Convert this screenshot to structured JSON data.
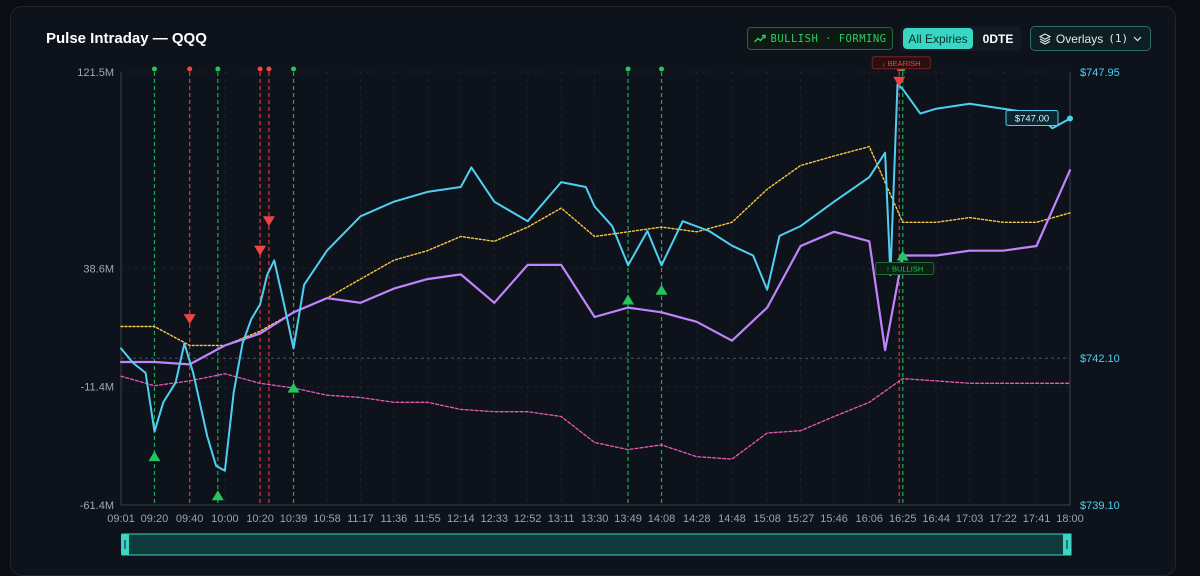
{
  "header": {
    "title": "Pulse Intraday — QQQ",
    "signal_badge": "BULLISH · FORMING",
    "expiry_all": "All Expiries",
    "expiry_0dte": "0DTE",
    "overlays_label": "Overlays",
    "overlays_count": "(1)"
  },
  "colors": {
    "price": "#4fd0f2",
    "net_flow": "#c084fc",
    "cumulative": "#f7c948",
    "put_flow": "#e75ab4",
    "bull": "#22c55e",
    "bear": "#ef4444"
  },
  "icons": {
    "signal": "trend-up-icon",
    "overlays": "layers-icon",
    "dropdown": "chevron-down-icon"
  },
  "chart_data": {
    "type": "line",
    "time_ticks": [
      "09:01",
      "09:20",
      "09:40",
      "10:00",
      "10:20",
      "10:39",
      "10:58",
      "11:17",
      "11:36",
      "11:55",
      "12:14",
      "12:33",
      "12:52",
      "13:11",
      "13:30",
      "13:49",
      "14:08",
      "14:28",
      "14:48",
      "15:08",
      "15:27",
      "15:46",
      "16:06",
      "16:25",
      "16:44",
      "17:03",
      "17:22",
      "17:41",
      "18:00"
    ],
    "left_axis": {
      "ticks": [
        "121.5M",
        "38.6M",
        "-11.4M",
        "-61.4M"
      ],
      "values": [
        121.5,
        38.6,
        -11.4,
        -61.4
      ],
      "range": [
        -61.4,
        121.5
      ]
    },
    "right_axis": {
      "ticks": [
        "$747.95",
        "$742.10",
        "$739.10"
      ],
      "values": [
        747.95,
        742.1,
        739.1
      ],
      "range": [
        739.1,
        747.95
      ]
    },
    "reference_line": {
      "axis": "right",
      "value": 742.1
    },
    "price_label": "$747.00",
    "series": [
      {
        "key": "price",
        "axis": "right",
        "style": "solid",
        "points": [
          [
            "09:01",
            742.3
          ],
          [
            "09:08",
            742.0
          ],
          [
            "09:15",
            741.8
          ],
          [
            "09:20",
            740.6
          ],
          [
            "09:25",
            741.2
          ],
          [
            "09:32",
            741.6
          ],
          [
            "09:37",
            742.4
          ],
          [
            "09:42",
            741.8
          ],
          [
            "09:50",
            740.5
          ],
          [
            "09:55",
            739.9
          ],
          [
            "10:00",
            739.8
          ],
          [
            "10:05",
            741.4
          ],
          [
            "10:10",
            742.4
          ],
          [
            "10:15",
            742.9
          ],
          [
            "10:20",
            743.2
          ],
          [
            "10:24",
            743.8
          ],
          [
            "10:28",
            744.1
          ],
          [
            "10:33",
            743.3
          ],
          [
            "10:39",
            742.3
          ],
          [
            "10:45",
            743.6
          ],
          [
            "10:58",
            744.3
          ],
          [
            "11:17",
            745.0
          ],
          [
            "11:36",
            745.3
          ],
          [
            "11:55",
            745.5
          ],
          [
            "12:14",
            745.6
          ],
          [
            "12:20",
            746.0
          ],
          [
            "12:33",
            745.3
          ],
          [
            "12:52",
            744.9
          ],
          [
            "13:11",
            745.7
          ],
          [
            "13:25",
            745.6
          ],
          [
            "13:30",
            745.2
          ],
          [
            "13:40",
            744.8
          ],
          [
            "13:49",
            744.0
          ],
          [
            "14:00",
            744.7
          ],
          [
            "14:08",
            744.0
          ],
          [
            "14:20",
            744.9
          ],
          [
            "14:35",
            744.7
          ],
          [
            "14:48",
            744.4
          ],
          [
            "15:00",
            744.2
          ],
          [
            "15:08",
            743.5
          ],
          [
            "15:15",
            744.6
          ],
          [
            "15:27",
            744.8
          ],
          [
            "15:46",
            745.3
          ],
          [
            "16:06",
            745.8
          ],
          [
            "16:15",
            746.3
          ],
          [
            "16:18",
            743.8
          ],
          [
            "16:22",
            747.7
          ],
          [
            "16:25",
            747.6
          ],
          [
            "16:35",
            747.1
          ],
          [
            "16:44",
            747.2
          ],
          [
            "17:03",
            747.3
          ],
          [
            "17:22",
            747.2
          ],
          [
            "17:41",
            747.1
          ],
          [
            "17:50",
            746.8
          ],
          [
            "18:00",
            747.0
          ]
        ]
      },
      {
        "key": "cumulative",
        "axis": "left",
        "style": "dotted",
        "points": [
          [
            "09:01",
            14
          ],
          [
            "09:20",
            14
          ],
          [
            "09:40",
            6
          ],
          [
            "10:00",
            6
          ],
          [
            "10:20",
            12
          ],
          [
            "10:39",
            20
          ],
          [
            "10:58",
            26
          ],
          [
            "11:17",
            34
          ],
          [
            "11:36",
            42
          ],
          [
            "11:55",
            46
          ],
          [
            "12:14",
            52
          ],
          [
            "12:33",
            50
          ],
          [
            "12:52",
            56
          ],
          [
            "13:11",
            64
          ],
          [
            "13:30",
            52
          ],
          [
            "13:49",
            54
          ],
          [
            "14:08",
            56
          ],
          [
            "14:28",
            54
          ],
          [
            "14:48",
            58
          ],
          [
            "15:08",
            72
          ],
          [
            "15:27",
            82
          ],
          [
            "15:46",
            86
          ],
          [
            "16:06",
            90
          ],
          [
            "16:25",
            58
          ],
          [
            "16:44",
            58
          ],
          [
            "17:03",
            60
          ],
          [
            "17:22",
            58
          ],
          [
            "17:41",
            58
          ],
          [
            "18:00",
            62
          ]
        ]
      },
      {
        "key": "net_flow",
        "axis": "left",
        "style": "solid",
        "points": [
          [
            "09:01",
            -1
          ],
          [
            "09:20",
            -1
          ],
          [
            "09:40",
            -2
          ],
          [
            "10:00",
            6
          ],
          [
            "10:20",
            11
          ],
          [
            "10:39",
            20
          ],
          [
            "10:58",
            26
          ],
          [
            "11:17",
            24
          ],
          [
            "11:36",
            30
          ],
          [
            "11:55",
            34
          ],
          [
            "12:14",
            36
          ],
          [
            "12:33",
            24
          ],
          [
            "12:52",
            40
          ],
          [
            "13:11",
            40
          ],
          [
            "13:30",
            18
          ],
          [
            "13:49",
            22
          ],
          [
            "14:08",
            20
          ],
          [
            "14:28",
            16
          ],
          [
            "14:48",
            8
          ],
          [
            "15:08",
            22
          ],
          [
            "15:27",
            48
          ],
          [
            "15:46",
            54
          ],
          [
            "16:06",
            50
          ],
          [
            "16:15",
            4
          ],
          [
            "16:25",
            44
          ],
          [
            "16:44",
            44
          ],
          [
            "17:03",
            46
          ],
          [
            "17:22",
            46
          ],
          [
            "17:41",
            48
          ],
          [
            "18:00",
            80
          ]
        ]
      },
      {
        "key": "put_flow",
        "axis": "left",
        "style": "dashed",
        "points": [
          [
            "09:01",
            -7
          ],
          [
            "09:20",
            -11
          ],
          [
            "09:40",
            -9
          ],
          [
            "10:00",
            -6
          ],
          [
            "10:20",
            -10
          ],
          [
            "10:39",
            -12
          ],
          [
            "10:58",
            -15
          ],
          [
            "11:17",
            -16
          ],
          [
            "11:36",
            -18
          ],
          [
            "11:55",
            -18
          ],
          [
            "12:14",
            -21
          ],
          [
            "12:33",
            -22
          ],
          [
            "12:52",
            -22
          ],
          [
            "13:11",
            -24
          ],
          [
            "13:30",
            -35
          ],
          [
            "13:49",
            -38
          ],
          [
            "14:08",
            -36
          ],
          [
            "14:28",
            -41
          ],
          [
            "14:48",
            -42
          ],
          [
            "15:08",
            -31
          ],
          [
            "15:27",
            -30
          ],
          [
            "15:46",
            -24
          ],
          [
            "16:06",
            -18
          ],
          [
            "16:25",
            -8
          ],
          [
            "16:44",
            -9
          ],
          [
            "17:03",
            -10
          ],
          [
            "17:22",
            -10
          ],
          [
            "17:41",
            -10
          ],
          [
            "18:00",
            -10
          ]
        ]
      }
    ],
    "signals": [
      {
        "time": "09:20",
        "type": "bull",
        "price": 740.1
      },
      {
        "time": "09:40",
        "type": "bear",
        "price": 742.9
      },
      {
        "time": "09:56",
        "type": "bull",
        "price": 739.3
      },
      {
        "time": "10:20",
        "type": "bear",
        "price": 744.3
      },
      {
        "time": "10:25",
        "type": "bear",
        "price": 744.9
      },
      {
        "time": "10:39",
        "type": "bull",
        "price": 741.5
      },
      {
        "time": "13:49",
        "type": "bull",
        "price": 743.3
      },
      {
        "time": "14:08",
        "type": "bull",
        "price": 743.5
      },
      {
        "time": "16:23",
        "type": "bear",
        "price": 747.75,
        "label": "↓ BEARISH"
      },
      {
        "time": "16:25",
        "type": "bull",
        "price": 744.2,
        "label": "↑ BULLISH"
      }
    ],
    "grid": true,
    "legend": "none"
  }
}
